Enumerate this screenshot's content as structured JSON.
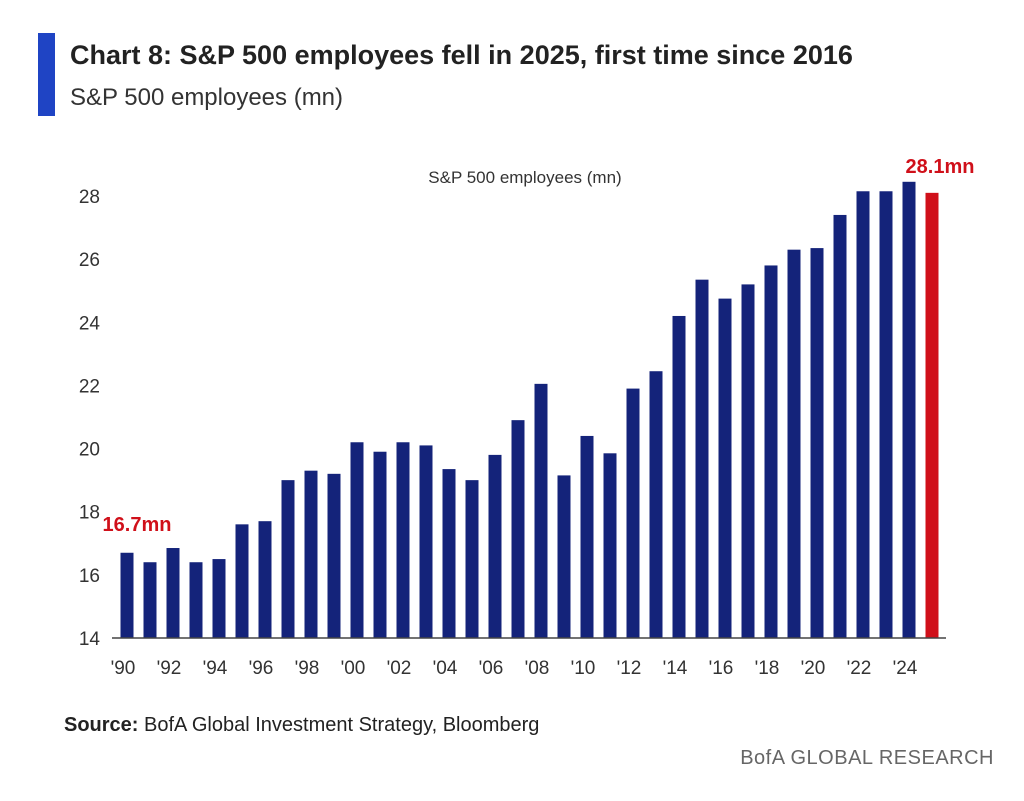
{
  "header": {
    "title": "Chart 8: S&P 500 employees fell in 2025, first time since 2016",
    "subtitle": "S&P 500 employees (mn)"
  },
  "footer": {
    "source_label": "Source:",
    "source_text": " BofA Global Investment Strategy, Bloomberg",
    "brand": "BofA GLOBAL RESEARCH"
  },
  "chart_data": {
    "type": "bar",
    "title": "S&P 500 employees (mn)",
    "xlabel": "",
    "ylabel": "",
    "ylim": [
      14,
      28.8
    ],
    "yticks": [
      14,
      16,
      18,
      20,
      22,
      24,
      26,
      28
    ],
    "x": [
      1990,
      1991,
      1992,
      1993,
      1994,
      1995,
      1996,
      1997,
      1998,
      1999,
      2000,
      2001,
      2002,
      2003,
      2004,
      2005,
      2006,
      2007,
      2008,
      2009,
      2010,
      2011,
      2012,
      2013,
      2014,
      2015,
      2016,
      2017,
      2018,
      2019,
      2020,
      2021,
      2022,
      2023,
      2024,
      2025
    ],
    "xtick_labels": [
      "'90",
      "'92",
      "'94",
      "'96",
      "'98",
      "'00",
      "'02",
      "'04",
      "'06",
      "'08",
      "'10",
      "'12",
      "'14",
      "'16",
      "'18",
      "'20",
      "'22",
      "'24"
    ],
    "values": [
      16.7,
      16.4,
      16.85,
      16.4,
      16.5,
      17.6,
      17.7,
      19.0,
      19.3,
      19.2,
      20.2,
      19.9,
      20.2,
      20.1,
      19.35,
      19.0,
      19.8,
      20.9,
      22.05,
      19.15,
      20.4,
      19.85,
      21.9,
      22.45,
      24.2,
      25.35,
      24.75,
      25.2,
      25.8,
      26.3,
      26.35,
      27.4,
      28.15,
      28.15,
      28.45,
      28.1
    ],
    "colors": {
      "default": "#14237a",
      "highlight": "#d0101a"
    },
    "highlight_index": 35,
    "annotations": [
      {
        "text": "16.7mn",
        "x": 1990
      },
      {
        "text": "28.1mn",
        "x": 2025
      }
    ],
    "grid": false,
    "legend": "none"
  }
}
